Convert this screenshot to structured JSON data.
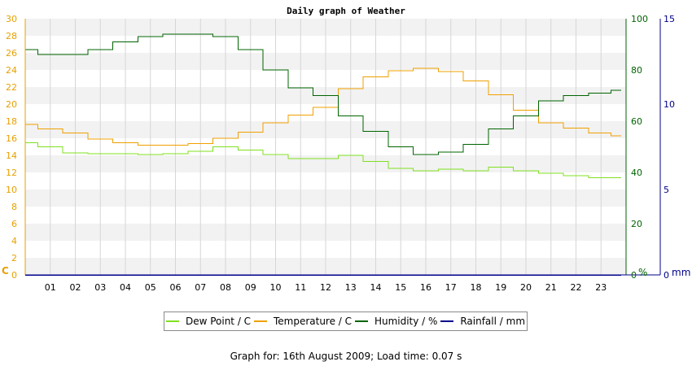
{
  "footer": "Graph for: 16th August 2009; Load time: 0.07 s",
  "chart_data": {
    "type": "line",
    "title": "Daily graph of Weather",
    "x_ticks": [
      "01",
      "02",
      "03",
      "04",
      "05",
      "06",
      "07",
      "08",
      "09",
      "10",
      "11",
      "12",
      "13",
      "14",
      "15",
      "16",
      "17",
      "18",
      "19",
      "20",
      "21",
      "22",
      "23"
    ],
    "xlim": [
      0,
      24
    ],
    "grid": "horizontal bands + vertical hour lines",
    "legend_position": "bottom",
    "axes": {
      "left": {
        "unit": "C",
        "ticks": [
          "0",
          "2",
          "4",
          "6",
          "8",
          "10",
          "12",
          "14",
          "16",
          "18",
          "20",
          "22",
          "24",
          "26",
          "28",
          "30"
        ],
        "range": [
          0,
          30
        ],
        "color": "#e8a000"
      },
      "right1": {
        "unit": "%",
        "ticks": [
          "0",
          "20",
          "40",
          "60",
          "80",
          "100"
        ],
        "range": [
          0,
          100
        ],
        "color": "#006400"
      },
      "right2": {
        "unit": "mm",
        "ticks": [
          "0",
          "5",
          "10",
          "15"
        ],
        "range": [
          0,
          15
        ],
        "color": "#00008b"
      }
    },
    "series": [
      {
        "name": "Dew Point / C",
        "axis": "left",
        "color": "#80e020",
        "x": [
          0,
          1,
          2,
          3,
          4,
          5,
          6,
          7,
          8,
          9,
          10,
          11,
          12,
          13,
          14,
          15,
          16,
          17,
          18,
          19,
          20,
          21,
          22,
          23,
          23.8
        ],
        "y": [
          15.5,
          15.0,
          14.3,
          14.2,
          14.2,
          14.1,
          14.2,
          14.5,
          15.0,
          14.6,
          14.1,
          13.6,
          13.6,
          14.0,
          13.3,
          12.5,
          12.2,
          12.4,
          12.2,
          12.6,
          12.2,
          11.9,
          11.6,
          11.4,
          11.4
        ]
      },
      {
        "name": "Temperature / C",
        "axis": "left",
        "color": "#f0a000",
        "x": [
          0,
          1,
          2,
          3,
          4,
          5,
          6,
          7,
          8,
          9,
          10,
          11,
          12,
          13,
          14,
          15,
          16,
          17,
          18,
          19,
          20,
          21,
          22,
          23,
          23.8
        ],
        "y": [
          17.6,
          17.1,
          16.6,
          15.9,
          15.5,
          15.2,
          15.2,
          15.4,
          16.0,
          16.7,
          17.8,
          18.7,
          19.6,
          21.8,
          23.2,
          23.9,
          24.2,
          23.8,
          22.7,
          21.1,
          19.3,
          17.8,
          17.2,
          16.6,
          16.3
        ]
      },
      {
        "name": "Humidity / %",
        "axis": "right1",
        "color": "#006400",
        "x": [
          0,
          1,
          2,
          3,
          4,
          5,
          6,
          7,
          8,
          9,
          10,
          11,
          12,
          13,
          14,
          15,
          16,
          17,
          18,
          19,
          20,
          21,
          22,
          23,
          23.8
        ],
        "y": [
          88,
          86,
          86,
          88,
          91,
          93,
          94,
          94,
          93,
          88,
          80,
          73,
          70,
          62,
          56,
          50,
          47,
          48,
          51,
          57,
          62,
          68,
          70,
          71,
          72
        ]
      },
      {
        "name": "Rainfall / mm",
        "axis": "right2",
        "color": "#00008b",
        "x": [
          0,
          23.8
        ],
        "y": [
          0,
          0
        ]
      }
    ]
  }
}
